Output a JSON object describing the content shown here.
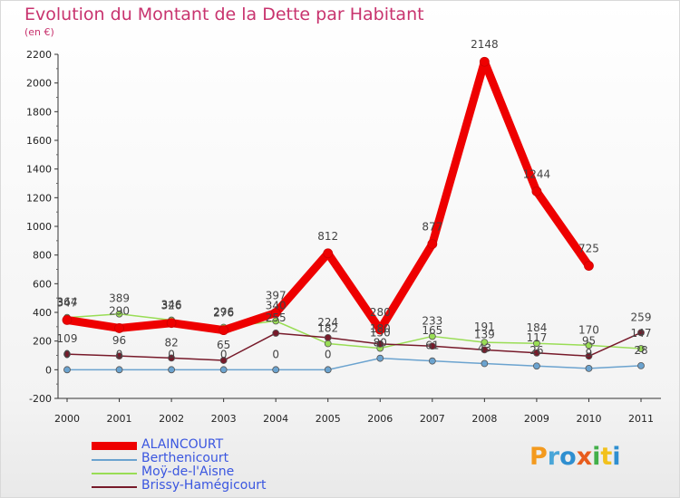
{
  "title": "Evolution du Montant de la Dette par Habitant",
  "subtitle": "(en €)",
  "logo": {
    "text": "Proxiti",
    "letter_colors": [
      "#f39a1e",
      "#49a6d8",
      "#2f8fd0",
      "#e85c1c",
      "#43b04a",
      "#f2c11d",
      "#2f8fd0"
    ]
  },
  "chart_data": {
    "type": "line",
    "x": [
      "2000",
      "2001",
      "2002",
      "2003",
      "2004",
      "2005",
      "2006",
      "2007",
      "2008",
      "2009",
      "2010",
      "2011"
    ],
    "ylim": [
      -200,
      2200
    ],
    "yticks": [
      "-200",
      "0",
      "200",
      "400",
      "600",
      "800",
      "1000",
      "1200",
      "1400",
      "1600",
      "1800",
      "2000",
      "2200"
    ],
    "ytick_values": [
      -200,
      0,
      200,
      400,
      600,
      800,
      1000,
      1200,
      1400,
      1600,
      1800,
      2000,
      2200
    ],
    "grid": false,
    "legend_position": "bottom-left",
    "series": [
      {
        "name": "ALAINCOURT",
        "color": "#ee0000",
        "values": [
          347,
          290,
          326,
          276,
          397,
          812,
          280,
          877,
          2148,
          1244,
          725,
          null
        ],
        "labels": [
          "347",
          "290",
          "326",
          "276",
          "397",
          "812",
          "280",
          "877",
          "2148",
          "1244",
          "725",
          ""
        ]
      },
      {
        "name": "Berthenicourt",
        "color": "#6ba3cf",
        "values": [
          0,
          0,
          0,
          0,
          0,
          0,
          80,
          61,
          43,
          26,
          9,
          28
        ],
        "labels": [
          "0",
          "0",
          "0",
          "0",
          "0",
          "0",
          "80",
          "61",
          "43",
          "26",
          "9",
          "28"
        ]
      },
      {
        "name": "Moÿ-de-l'Aisne",
        "color": "#99dd55",
        "values": [
          364,
          389,
          346,
          296,
          340,
          182,
          150,
          233,
          191,
          184,
          170,
          147
        ],
        "labels": [
          "364",
          "389",
          "346",
          "296",
          "340",
          "182",
          "150",
          "233",
          "191",
          "184",
          "170",
          "147"
        ]
      },
      {
        "name": "Brissy-Hamégicourt",
        "color": "#771a2a",
        "values": [
          109,
          96,
          82,
          65,
          255,
          224,
          180,
          165,
          139,
          117,
          95,
          259
        ],
        "labels": [
          "109",
          "96",
          "82",
          "65",
          "255",
          "224",
          "180",
          "165",
          "139",
          "117",
          "95",
          "259"
        ]
      }
    ]
  }
}
